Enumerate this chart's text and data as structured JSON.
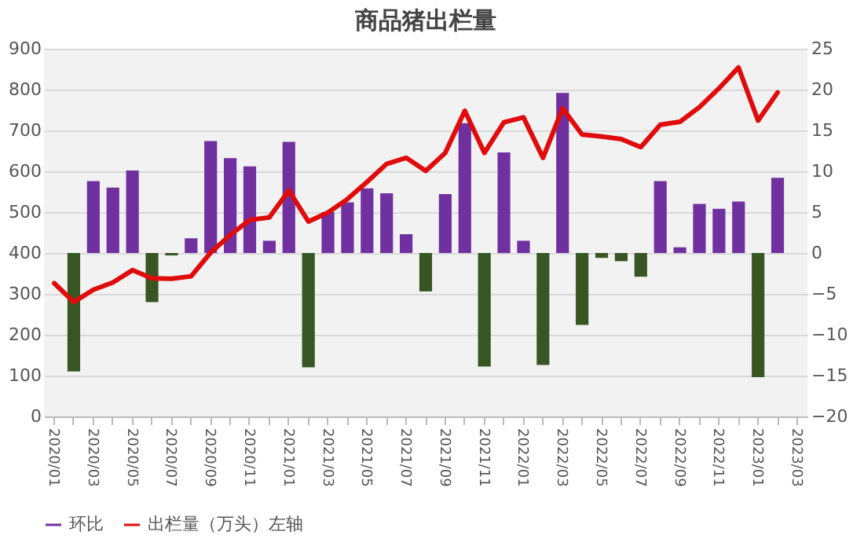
{
  "chart_data": {
    "type": "bar",
    "title": "商品猪出栏量",
    "categories": [
      "2020/01",
      null,
      "2020/03",
      null,
      "2020/05",
      null,
      "2020/07",
      null,
      "2020/09",
      null,
      "2020/11",
      null,
      "2021/01",
      null,
      "2021/03",
      null,
      "2021/05",
      null,
      "2021/07",
      null,
      "2021/09",
      null,
      "2021/11",
      null,
      "2022/01",
      null,
      "2022/03",
      null,
      "2022/05",
      null,
      "2022/07",
      null,
      "2022/09",
      null,
      "2022/11",
      null,
      "2023/01",
      null,
      "2023/03"
    ],
    "series": [
      {
        "name": "环比",
        "axis": "y2",
        "color": "#7030a0",
        "colors": [
          "#7030a0",
          "#375623",
          "#7030a0",
          "#7030a0",
          "#7030a0",
          "#375623",
          "#375623",
          "#7030a0",
          "#7030a0",
          "#7030a0",
          "#7030a0",
          "#7030a0",
          "#7030a0",
          "#375623",
          "#7030a0",
          "#7030a0",
          "#7030a0",
          "#7030a0",
          "#7030a0",
          "#375623",
          "#7030a0",
          "#7030a0",
          "#375623",
          "#7030a0",
          "#7030a0",
          "#375623",
          "#7030a0",
          "#375623",
          "#375623",
          "#375623",
          "#375623",
          "#7030a0",
          "#7030a0",
          "#7030a0",
          "#7030a0",
          "#7030a0",
          "#375623",
          "#7030a0",
          "#7030a0"
        ],
        "values": [
          null,
          -14.5,
          8.8,
          8.0,
          10.1,
          -6.0,
          -0.3,
          1.8,
          13.7,
          11.6,
          10.6,
          1.5,
          13.6,
          -14.0,
          5.0,
          6.2,
          7.9,
          7.3,
          2.3,
          -4.7,
          7.2,
          15.9,
          -13.9,
          12.3,
          1.5,
          -13.7,
          19.6,
          -8.8,
          -0.6,
          -1.0,
          -2.9,
          8.8,
          0.7,
          6.0,
          5.4,
          6.3,
          -15.2,
          9.2,
          null
        ]
      },
      {
        "name": "出栏量（万头）左轴",
        "type": "line",
        "color": "#e00b0b",
        "values": [
          326,
          280,
          310,
          328,
          358,
          338,
          337,
          343,
          401,
          444,
          481,
          487,
          553,
          477,
          499,
          532,
          574,
          618,
          633,
          601,
          645,
          748,
          645,
          720,
          732,
          633,
          754,
          690,
          685,
          679,
          659,
          714,
          721,
          757,
          803,
          854,
          724,
          793,
          null
        ]
      }
    ],
    "ylim": [
      0,
      900
    ],
    "yticks": [
      0,
      100,
      200,
      300,
      400,
      500,
      600,
      700,
      800,
      900
    ],
    "y2lim": [
      -20,
      25
    ],
    "y2ticks": [
      -20,
      -15,
      -10,
      -5,
      0,
      5,
      10,
      15,
      20,
      25
    ],
    "grid": "y",
    "legend": "bottom",
    "line_style": "solid",
    "marker": "none"
  }
}
